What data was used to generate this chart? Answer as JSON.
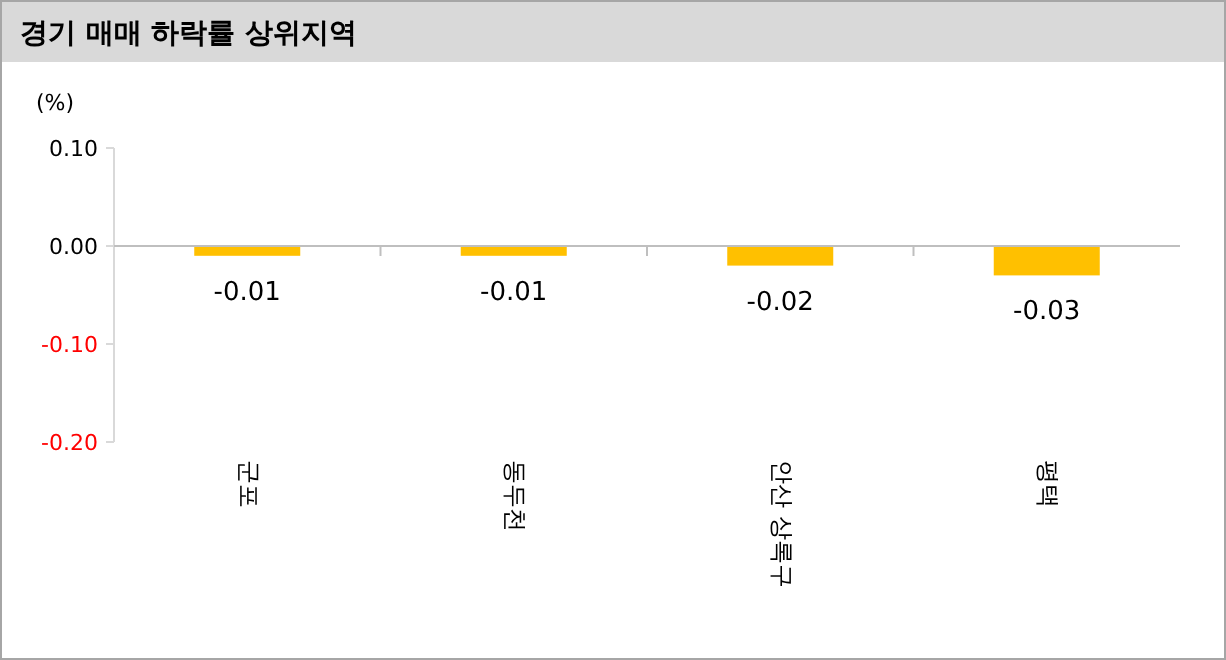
{
  "chart_data": {
    "type": "bar",
    "title": "경기 매매 하락률 상위지역",
    "ylabel": "(%)",
    "categories": [
      "군포",
      "동두천",
      "안산 상록구",
      "평택"
    ],
    "values": [
      -0.01,
      -0.01,
      -0.02,
      -0.03
    ],
    "color": "#ffc000",
    "ylim": [
      -0.2,
      0.1
    ],
    "yticks": [
      {
        "value": 0.1,
        "label": "0.10"
      },
      {
        "value": 0,
        "label": "0.00"
      },
      {
        "value": -0.1,
        "label": "-0.10"
      },
      {
        "value": -0.2,
        "label": "-0.20"
      }
    ],
    "data_labels": true
  }
}
